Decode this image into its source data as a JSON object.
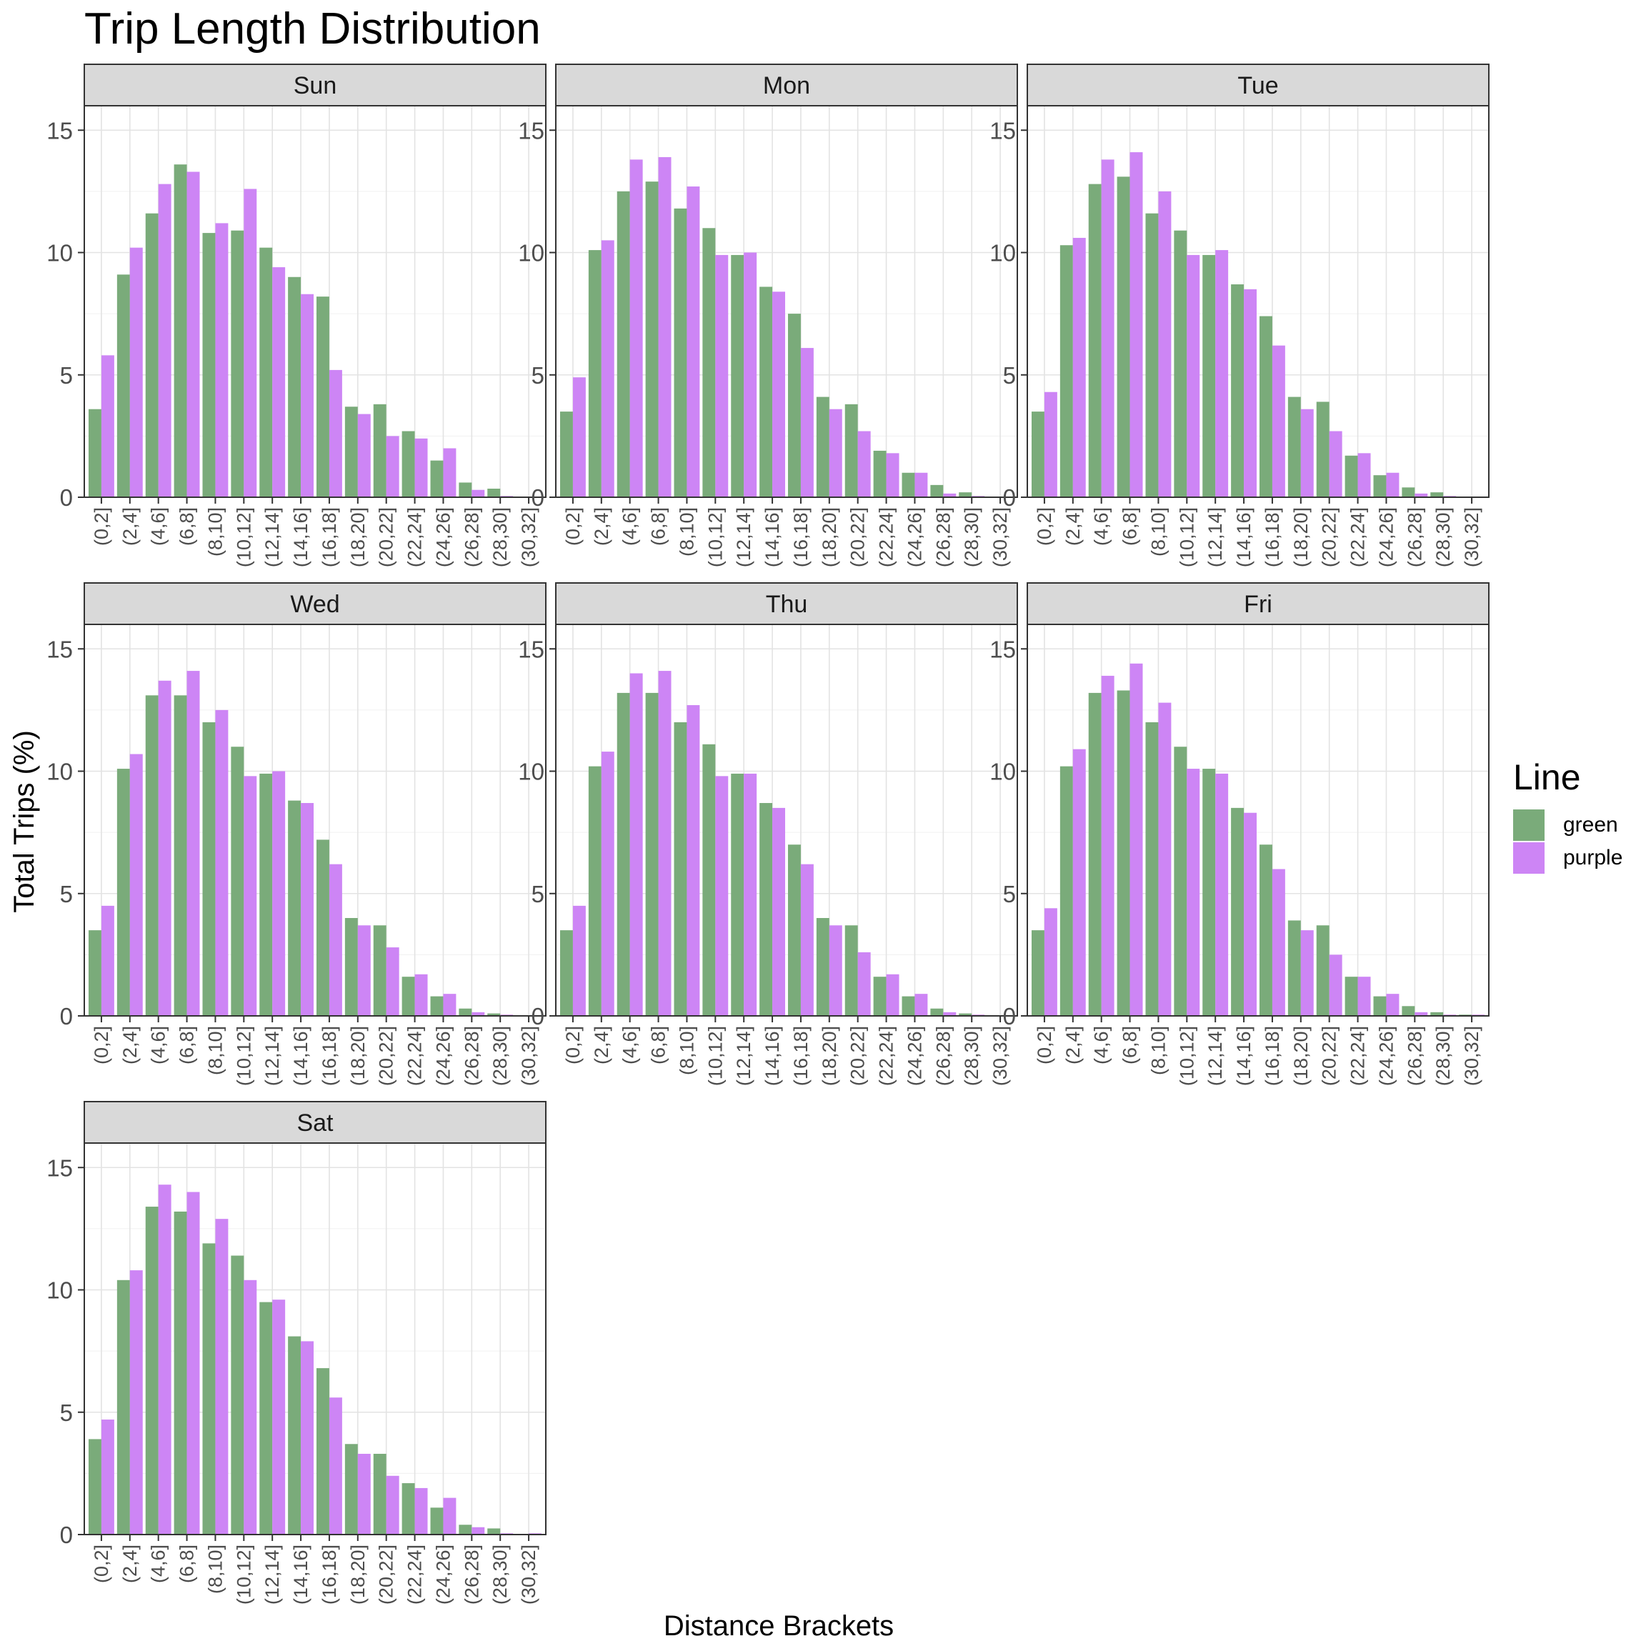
{
  "chart_data": {
    "type": "bar",
    "title": "Trip Length Distribution",
    "xlabel": "Distance Brackets",
    "ylabel": "Total Trips (%)",
    "ylim": [
      0,
      16
    ],
    "yticks": [
      0,
      5,
      10,
      15
    ],
    "grid": true,
    "legend": {
      "title": "Line",
      "placement": "right"
    },
    "categories": [
      "(0,2]",
      "(2,4]",
      "(4,6]",
      "(6,8]",
      "(8,10]",
      "(10,12]",
      "(12,14]",
      "(14,16]",
      "(16,18]",
      "(18,20]",
      "(20,22]",
      "(22,24]",
      "(24,26]",
      "(26,28]",
      "(28,30]",
      "(30,32]"
    ],
    "series_colors": {
      "green": "#7aab7a",
      "purple": "#cd85f5"
    },
    "panels": [
      {
        "label": "Sun",
        "series": [
          {
            "name": "green",
            "values": [
              3.6,
              9.1,
              11.6,
              13.6,
              10.8,
              10.9,
              10.2,
              9.0,
              8.2,
              3.7,
              3.8,
              2.7,
              1.5,
              0.6,
              0.35,
              0.0
            ]
          },
          {
            "name": "purple",
            "values": [
              5.8,
              10.2,
              12.8,
              13.3,
              11.2,
              12.6,
              9.4,
              8.3,
              5.2,
              3.4,
              2.5,
              2.4,
              2.0,
              0.3,
              0.05,
              0.0
            ]
          }
        ]
      },
      {
        "label": "Mon",
        "series": [
          {
            "name": "green",
            "values": [
              3.5,
              10.1,
              12.5,
              12.9,
              11.8,
              11.0,
              9.9,
              8.6,
              7.5,
              4.1,
              3.8,
              1.9,
              1.0,
              0.5,
              0.2,
              0.0
            ]
          },
          {
            "name": "purple",
            "values": [
              4.9,
              10.5,
              13.8,
              13.9,
              12.7,
              9.9,
              10.0,
              8.4,
              6.1,
              3.6,
              2.7,
              1.8,
              1.0,
              0.15,
              0.05,
              0.0
            ]
          }
        ]
      },
      {
        "label": "Tue",
        "series": [
          {
            "name": "green",
            "values": [
              3.5,
              10.3,
              12.8,
              13.1,
              11.6,
              10.9,
              9.9,
              8.7,
              7.4,
              4.1,
              3.9,
              1.7,
              0.9,
              0.4,
              0.2,
              0.0
            ]
          },
          {
            "name": "purple",
            "values": [
              4.3,
              10.6,
              13.8,
              14.1,
              12.5,
              9.9,
              10.1,
              8.5,
              6.2,
              3.6,
              2.7,
              1.8,
              1.0,
              0.15,
              0.05,
              0.0
            ]
          }
        ]
      },
      {
        "label": "Wed",
        "series": [
          {
            "name": "green",
            "values": [
              3.5,
              10.1,
              13.1,
              13.1,
              12.0,
              11.0,
              9.9,
              8.8,
              7.2,
              4.0,
              3.7,
              1.6,
              0.8,
              0.3,
              0.1,
              0.0
            ]
          },
          {
            "name": "purple",
            "values": [
              4.5,
              10.7,
              13.7,
              14.1,
              12.5,
              9.8,
              10.0,
              8.7,
              6.2,
              3.7,
              2.8,
              1.7,
              0.9,
              0.15,
              0.05,
              0.0
            ]
          }
        ]
      },
      {
        "label": "Thu",
        "series": [
          {
            "name": "green",
            "values": [
              3.5,
              10.2,
              13.2,
              13.2,
              12.0,
              11.1,
              9.9,
              8.7,
              7.0,
              4.0,
              3.7,
              1.6,
              0.8,
              0.3,
              0.1,
              0.0
            ]
          },
          {
            "name": "purple",
            "values": [
              4.5,
              10.8,
              14.0,
              14.1,
              12.7,
              9.8,
              9.9,
              8.5,
              6.2,
              3.7,
              2.6,
              1.7,
              0.9,
              0.15,
              0.05,
              0.0
            ]
          }
        ]
      },
      {
        "label": "Fri",
        "series": [
          {
            "name": "green",
            "values": [
              3.5,
              10.2,
              13.2,
              13.3,
              12.0,
              11.0,
              10.1,
              8.5,
              7.0,
              3.9,
              3.7,
              1.6,
              0.8,
              0.4,
              0.15,
              0.05
            ]
          },
          {
            "name": "purple",
            "values": [
              4.4,
              10.9,
              13.9,
              14.4,
              12.8,
              10.1,
              9.9,
              8.3,
              6.0,
              3.5,
              2.5,
              1.6,
              0.9,
              0.15,
              0.05,
              0.05
            ]
          }
        ]
      },
      {
        "label": "Sat",
        "series": [
          {
            "name": "green",
            "values": [
              3.9,
              10.4,
              13.4,
              13.2,
              11.9,
              11.4,
              9.5,
              8.1,
              6.8,
              3.7,
              3.3,
              2.1,
              1.1,
              0.4,
              0.25,
              0.0
            ]
          },
          {
            "name": "purple",
            "values": [
              4.7,
              10.8,
              14.3,
              14.0,
              12.9,
              10.4,
              9.6,
              7.9,
              5.6,
              3.3,
              2.4,
              1.9,
              1.5,
              0.3,
              0.05,
              0.05
            ]
          }
        ]
      }
    ]
  }
}
